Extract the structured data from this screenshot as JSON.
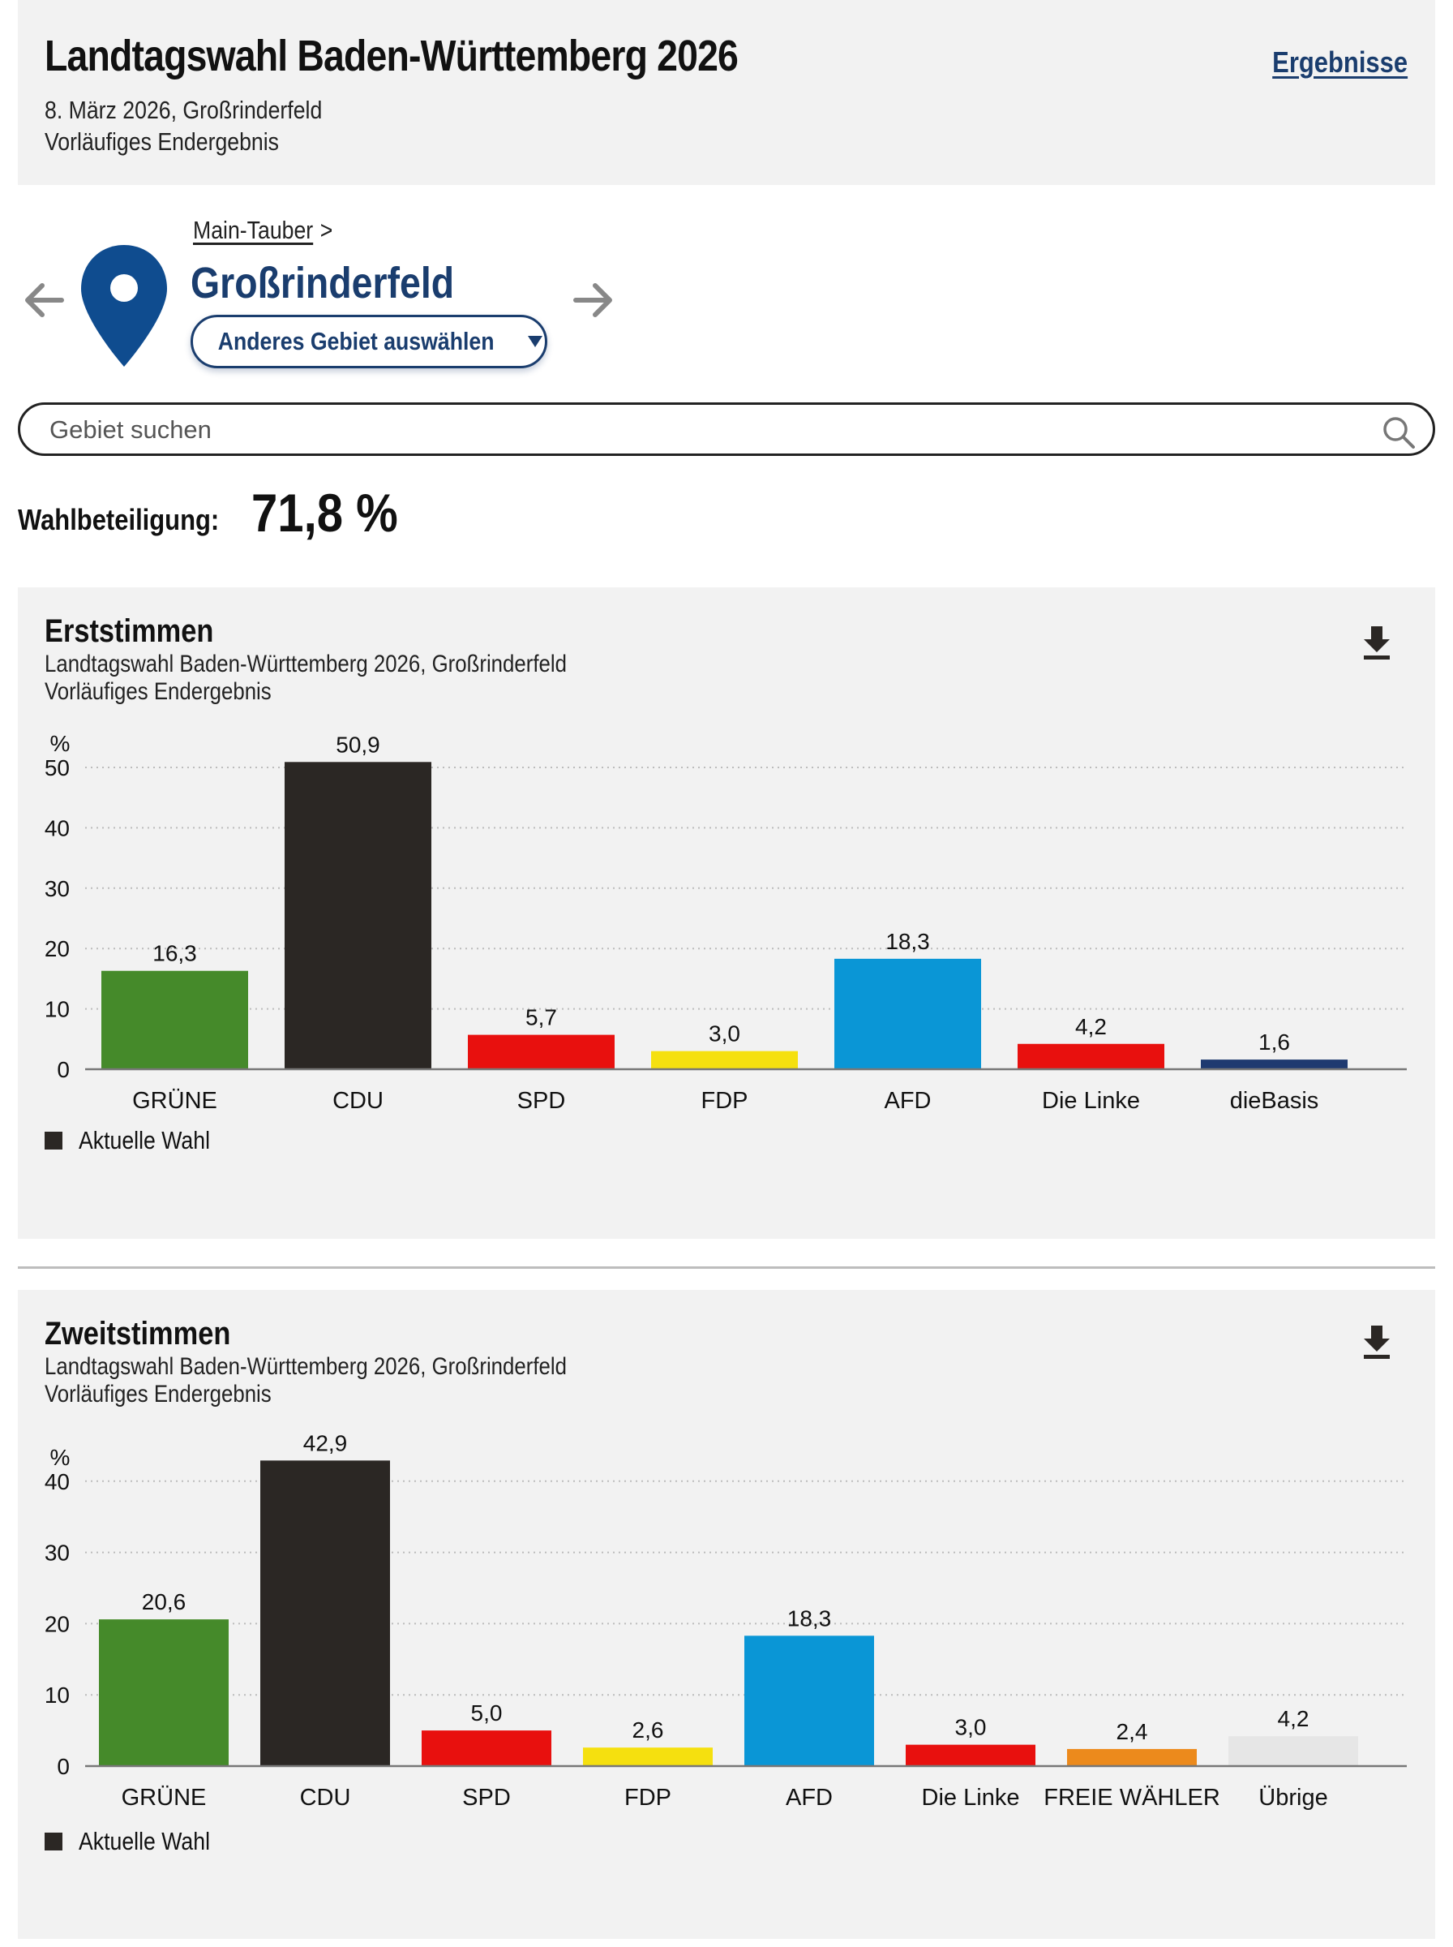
{
  "header": {
    "title": "Landtagswahl Baden-Württemberg 2026",
    "results_link": "Ergebnisse",
    "date_place": "8. März 2026, Großrinderfeld",
    "status": "Vorläufiges Endergebnis"
  },
  "location": {
    "breadcrumb_parent": "Main-Tauber",
    "breadcrumb_separator": ">",
    "place_name": "Großrinderfeld",
    "select_button_label": "Anderes Gebiet auswählen",
    "icons": {
      "pin": "map-pin-icon",
      "prev": "arrow-left-icon",
      "next": "arrow-right-icon",
      "dropdown": "caret-down-icon"
    },
    "pin_color": "#0f4c8f"
  },
  "search": {
    "placeholder": "Gebiet suchen",
    "value": "",
    "icon": "search-icon"
  },
  "turnout": {
    "label": "Wahlbeteiligung:",
    "value": "71,8 %"
  },
  "charts": [
    {
      "id": "erststimmen",
      "title": "Erststimmen",
      "subtitle": "Landtagswahl Baden-Württemberg 2026, Großrinderfeld",
      "status": "Vorläufiges Endergebnis",
      "legend_label": "Aktuelle Wahl",
      "download_icon": "download-icon"
    },
    {
      "id": "zweitstimmen",
      "title": "Zweitstimmen",
      "subtitle": "Landtagswahl Baden-Württemberg 2026, Großrinderfeld",
      "status": "Vorläufiges Endergebnis",
      "legend_label": "Aktuelle Wahl",
      "download_icon": "download-icon"
    }
  ],
  "chart_data": [
    {
      "type": "bar",
      "title": "Erststimmen",
      "subtitle": "Landtagswahl Baden-Württemberg 2026, Großrinderfeld",
      "xlabel": "",
      "ylabel": "%",
      "ylim": [
        0,
        50
      ],
      "yticks": [
        0,
        10,
        20,
        30,
        40,
        50
      ],
      "grid": true,
      "legend": [
        "Aktuelle Wahl"
      ],
      "legend_position": "bottom-left",
      "categories": [
        "GRÜNE",
        "CDU",
        "SPD",
        "FDP",
        "AFD",
        "Die Linke",
        "dieBasis"
      ],
      "values": [
        16.3,
        50.9,
        5.7,
        3.0,
        18.3,
        4.2,
        1.6
      ],
      "value_labels": [
        "16,3",
        "50,9",
        "5,7",
        "3,0",
        "18,3",
        "4,2",
        "1,6"
      ],
      "colors": [
        "#458a2a",
        "#2b2724",
        "#e8100e",
        "#f5e00f",
        "#0a96d6",
        "#e8100e",
        "#1f3a70"
      ]
    },
    {
      "type": "bar",
      "title": "Zweitstimmen",
      "subtitle": "Landtagswahl Baden-Württemberg 2026, Großrinderfeld",
      "xlabel": "",
      "ylabel": "%",
      "ylim": [
        0,
        40
      ],
      "yticks": [
        0,
        10,
        20,
        30,
        40
      ],
      "grid": true,
      "legend": [
        "Aktuelle Wahl"
      ],
      "legend_position": "bottom-left",
      "categories": [
        "GRÜNE",
        "CDU",
        "SPD",
        "FDP",
        "AFD",
        "Die Linke",
        "FREIE WÄHLER",
        "Übrige"
      ],
      "values": [
        20.6,
        42.9,
        5.0,
        2.6,
        18.3,
        3.0,
        2.4,
        4.2
      ],
      "value_labels": [
        "20,6",
        "42,9",
        "5,0",
        "2,6",
        "18,3",
        "3,0",
        "2,4",
        "4,2"
      ],
      "colors": [
        "#458a2a",
        "#2b2724",
        "#e8100e",
        "#f5e00f",
        "#0a96d6",
        "#e8100e",
        "#ec8a1c",
        "#e6e6e6"
      ]
    }
  ]
}
